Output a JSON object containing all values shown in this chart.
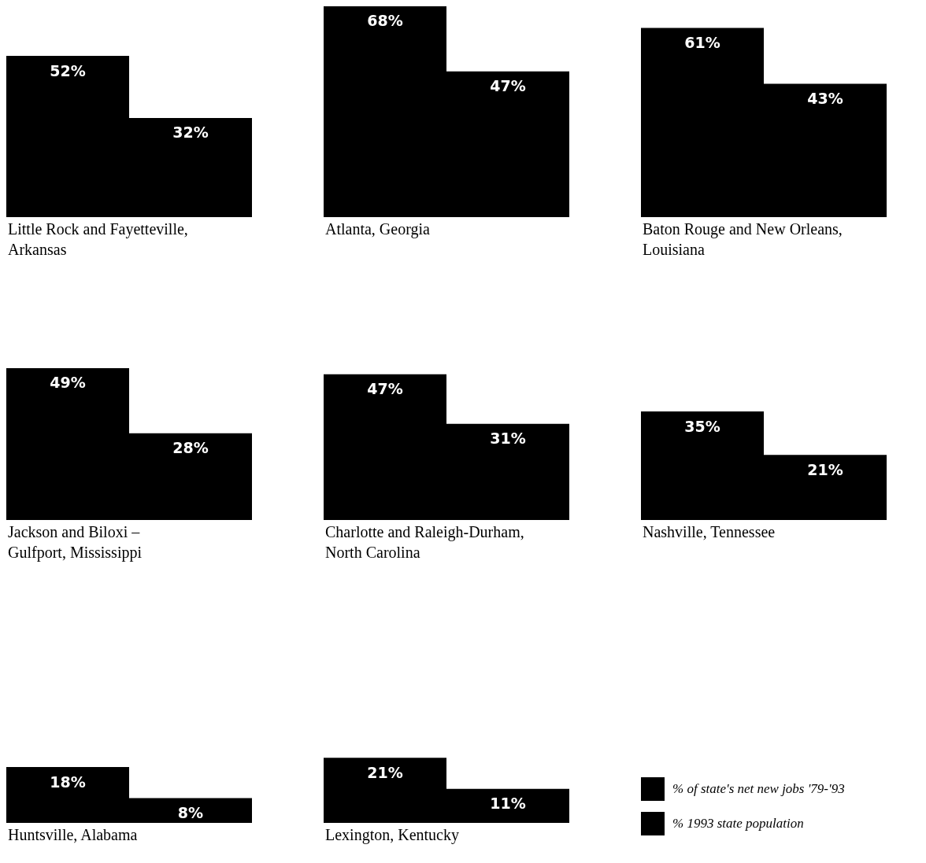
{
  "chart_data": [
    {
      "type": "bar",
      "categories": [
        null
      ],
      "xlabel": "Little Rock and Fayetteville, Arkansas",
      "data_labels": true,
      "series": [
        {
          "color": "#000000",
          "values": [
            52
          ],
          "value_labels": [
            "52%"
          ]
        },
        {
          "color": "#000000",
          "values": [
            32
          ],
          "value_labels": [
            "32%"
          ]
        }
      ]
    },
    {
      "type": "bar",
      "categories": [
        null
      ],
      "xlabel": "Atlanta, Georgia",
      "data_labels": true,
      "series": [
        {
          "color": "#000000",
          "values": [
            68
          ],
          "value_labels": [
            "68%"
          ]
        },
        {
          "color": "#000000",
          "values": [
            47
          ],
          "value_labels": [
            "47%"
          ]
        }
      ]
    },
    {
      "type": "bar",
      "categories": [
        null
      ],
      "xlabel": "Baton Rouge and New Orleans, Louisiana",
      "data_labels": true,
      "series": [
        {
          "color": "#000000",
          "values": [
            61
          ],
          "value_labels": [
            "61%"
          ]
        },
        {
          "color": "#000000",
          "values": [
            43
          ],
          "value_labels": [
            "43%"
          ]
        }
      ]
    },
    {
      "type": "bar",
      "categories": [
        null
      ],
      "xlabel": "Jackson and Biloxi – Gulfport, Mississippi",
      "data_labels": true,
      "series": [
        {
          "color": "#000000",
          "values": [
            49
          ],
          "value_labels": [
            "49%"
          ]
        },
        {
          "color": "#000000",
          "values": [
            28
          ],
          "value_labels": [
            "28%"
          ]
        }
      ]
    },
    {
      "type": "bar",
      "categories": [
        null
      ],
      "xlabel": "Charlotte and Raleigh-Durham, North Carolina",
      "data_labels": true,
      "series": [
        {
          "color": "#000000",
          "values": [
            47
          ],
          "value_labels": [
            "47%"
          ]
        },
        {
          "color": "#000000",
          "values": [
            31
          ],
          "value_labels": [
            "31%"
          ]
        }
      ]
    },
    {
      "type": "bar",
      "categories": [
        null
      ],
      "xlabel": "Nashville, Tennessee",
      "data_labels": true,
      "series": [
        {
          "color": "#000000",
          "values": [
            35
          ],
          "value_labels": [
            "35%"
          ]
        },
        {
          "color": "#000000",
          "values": [
            21
          ],
          "value_labels": [
            "21%"
          ]
        }
      ]
    },
    {
      "type": "bar",
      "categories": [
        null
      ],
      "xlabel": "Huntsville, Alabama",
      "data_labels": true,
      "series": [
        {
          "color": "#000000",
          "values": [
            18
          ],
          "value_labels": [
            "18%"
          ]
        },
        {
          "color": "#000000",
          "values": [
            8
          ],
          "value_labels": [
            "8%"
          ]
        }
      ]
    },
    {
      "type": "bar",
      "categories": [
        null
      ],
      "xlabel": "Lexington, Kentucky",
      "data_labels": true,
      "legend": "right",
      "series": [
        {
          "name": "% of state's net new jobs '79-'93",
          "color": "#000000",
          "values": [
            21
          ],
          "value_labels": [
            "21%"
          ]
        },
        {
          "name": "% 1993 state population",
          "color": "#000000",
          "values": [
            11
          ],
          "value_labels": [
            "11%"
          ]
        }
      ]
    }
  ]
}
